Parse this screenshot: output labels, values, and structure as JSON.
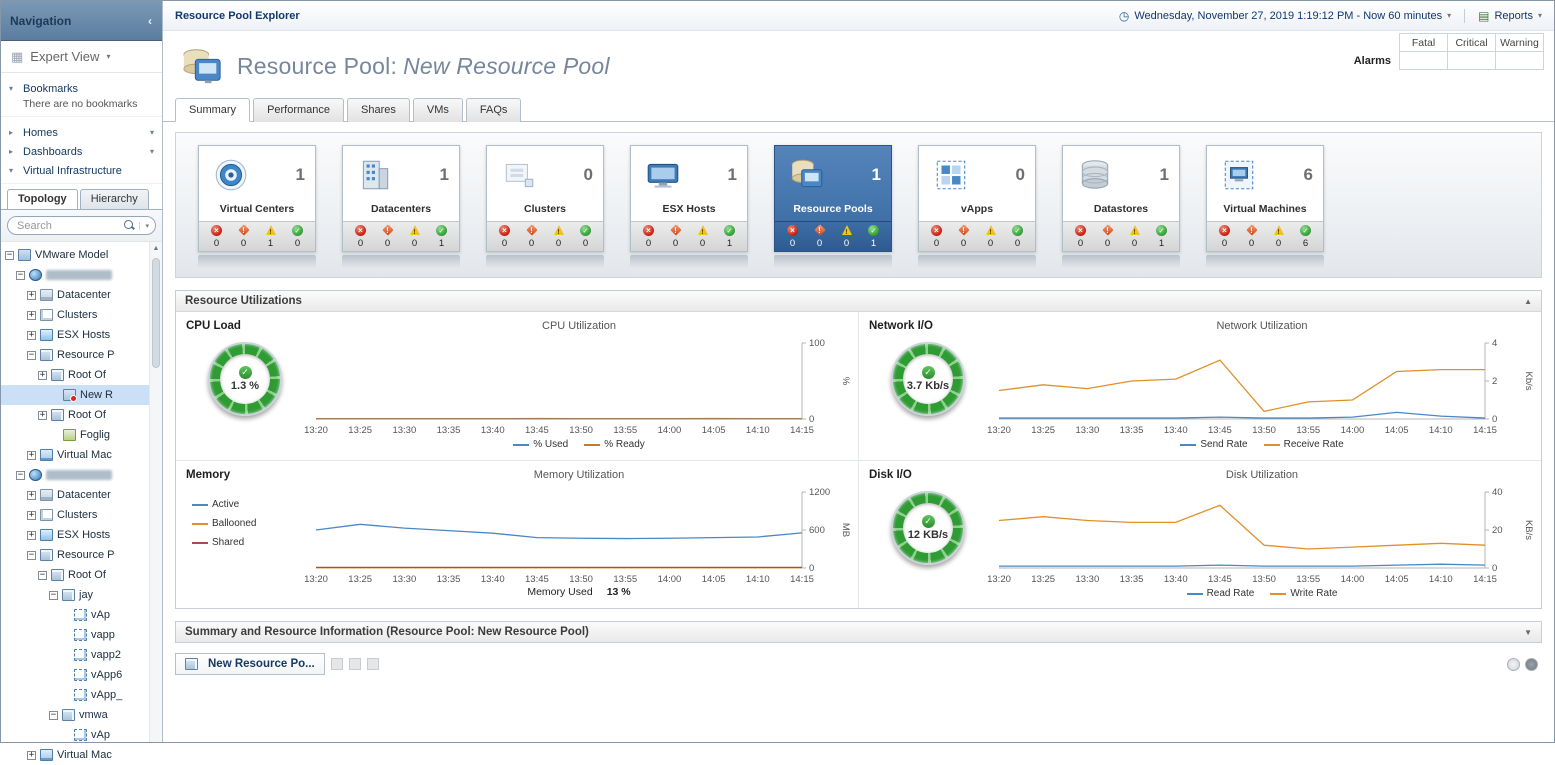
{
  "icons": {
    "collapse_left": "‹",
    "dropdown": "▾",
    "tri_down": "▾",
    "tri_right": "▸",
    "tri_up": "▲",
    "collapse_up": "▲",
    "collapse_down": "▼",
    "clock": "◷",
    "reports": "▤",
    "grid": "▦",
    "check": "✓",
    "search": "css-magnifier"
  },
  "nav": {
    "title": "Navigation",
    "expert_view": "Expert View",
    "bookmarks_label": "Bookmarks",
    "bookmarks_empty": "There are no bookmarks",
    "homes_label": "Homes",
    "dashboards_label": "Dashboards",
    "vi_label": "Virtual Infrastructure",
    "tabs": {
      "topology": "Topology",
      "hierarchy": "Hierarchy"
    },
    "search_placeholder": "Search",
    "tree": [
      {
        "depth": 0,
        "exp": "-",
        "icon": "model",
        "label": "VMware Model"
      },
      {
        "depth": 1,
        "exp": "-",
        "icon": "vcenter",
        "label": "",
        "redacted": true
      },
      {
        "depth": 2,
        "exp": "+",
        "icon": "datacenter",
        "label": "Datacenter"
      },
      {
        "depth": 2,
        "exp": "+",
        "icon": "cluster",
        "label": "Clusters"
      },
      {
        "depth": 2,
        "exp": "+",
        "icon": "host",
        "label": "ESX Hosts"
      },
      {
        "depth": 2,
        "exp": "-",
        "icon": "pool",
        "label": "Resource P"
      },
      {
        "depth": 3,
        "exp": "+",
        "icon": "pool",
        "label": "Root Of"
      },
      {
        "depth": 4,
        "exp": null,
        "icon": "pool-alarm",
        "label": "New R",
        "selected": true
      },
      {
        "depth": 3,
        "exp": "+",
        "icon": "pool",
        "label": "Root Of"
      },
      {
        "depth": 4,
        "exp": null,
        "icon": "foglight",
        "label": "Foglig"
      },
      {
        "depth": 2,
        "exp": "+",
        "icon": "vm",
        "label": "Virtual Mac"
      },
      {
        "depth": 1,
        "exp": "-",
        "icon": "vcenter",
        "label": "",
        "redacted": true
      },
      {
        "depth": 2,
        "exp": "+",
        "icon": "datacenter",
        "label": "Datacenter"
      },
      {
        "depth": 2,
        "exp": "+",
        "icon": "cluster",
        "label": "Clusters"
      },
      {
        "depth": 2,
        "exp": "+",
        "icon": "host",
        "label": "ESX Hosts"
      },
      {
        "depth": 2,
        "exp": "-",
        "icon": "pool",
        "label": "Resource P"
      },
      {
        "depth": 3,
        "exp": "-",
        "icon": "pool",
        "label": "Root Of"
      },
      {
        "depth": 4,
        "exp": "-",
        "icon": "pool",
        "label": "jay"
      },
      {
        "depth": 5,
        "exp": null,
        "icon": "vapp",
        "label": "vAp"
      },
      {
        "depth": 5,
        "exp": null,
        "icon": "vapp",
        "label": "vapp"
      },
      {
        "depth": 5,
        "exp": null,
        "icon": "vapp",
        "label": "vapp2"
      },
      {
        "depth": 5,
        "exp": null,
        "icon": "vapp",
        "label": "vApp6"
      },
      {
        "depth": 5,
        "exp": null,
        "icon": "vapp",
        "label": "vApp_"
      },
      {
        "depth": 4,
        "exp": "-",
        "icon": "pool",
        "label": "vmwa"
      },
      {
        "depth": 5,
        "exp": null,
        "icon": "vapp",
        "label": "vAp"
      },
      {
        "depth": 2,
        "exp": "+",
        "icon": "vm",
        "label": "Virtual Mac"
      }
    ]
  },
  "topbar": {
    "breadcrumb": "Resource Pool Explorer",
    "time_text": "Wednesday, November 27, 2019 1:19:12 PM - Now 60 minutes",
    "reports_label": "Reports"
  },
  "title": {
    "prefix": "Resource Pool:",
    "name": "New Resource Pool"
  },
  "alarms": {
    "label": "Alarms",
    "columns": [
      "Fatal",
      "Critical",
      "Warning"
    ],
    "values": [
      "",
      "",
      ""
    ]
  },
  "tabs": {
    "items": [
      "Summary",
      "Performance",
      "Shares",
      "VMs",
      "FAQs"
    ],
    "active": "Summary"
  },
  "badge_severities": [
    "fatal",
    "critical",
    "warning",
    "normal"
  ],
  "tiles": [
    {
      "label": "Virtual Centers",
      "count": "1",
      "icon": "virtual-centers",
      "badges": [
        "0",
        "0",
        "1",
        "0"
      ]
    },
    {
      "label": "Datacenters",
      "count": "1",
      "icon": "datacenters",
      "badges": [
        "0",
        "0",
        "0",
        "1"
      ]
    },
    {
      "label": "Clusters",
      "count": "0",
      "icon": "clusters",
      "badges": [
        "0",
        "0",
        "0",
        "0"
      ]
    },
    {
      "label": "ESX Hosts",
      "count": "1",
      "icon": "esx-hosts",
      "badges": [
        "0",
        "0",
        "0",
        "1"
      ]
    },
    {
      "label": "Resource Pools",
      "count": "1",
      "icon": "resource-pools",
      "badges": [
        "0",
        "0",
        "0",
        "1"
      ],
      "selected": true
    },
    {
      "label": "vApps",
      "count": "0",
      "icon": "vapps",
      "badges": [
        "0",
        "0",
        "0",
        "0"
      ]
    },
    {
      "label": "Datastores",
      "count": "1",
      "icon": "datastores",
      "badges": [
        "0",
        "0",
        "0",
        "1"
      ]
    },
    {
      "label": "Virtual Machines",
      "count": "6",
      "icon": "virtual-machines",
      "badges": [
        "0",
        "0",
        "0",
        "6"
      ]
    }
  ],
  "sections": {
    "utilizations": "Resource Utilizations",
    "summary": "Summary and Resource Information (Resource Pool: New Resource Pool)"
  },
  "quadrants": {
    "cpu": {
      "label": "CPU Load",
      "gauge_value": "1.3 %",
      "chart_title": "CPU Utilization"
    },
    "network": {
      "label": "Network I/O",
      "gauge_value": "3.7 Kb/s",
      "chart_title": "Network Utilization"
    },
    "memory": {
      "label": "Memory",
      "chart_title": "Memory Utilization",
      "footer_label": "Memory Used",
      "footer_value": "13 %"
    },
    "disk": {
      "label": "Disk I/O",
      "gauge_value": "12 KB/s",
      "chart_title": "Disk Utilization"
    }
  },
  "chart_data": [
    {
      "id": "cpu",
      "type": "line",
      "title": "CPU Utilization",
      "ylabel": "%",
      "ylim": [
        0,
        100
      ],
      "yticks": [
        0,
        100
      ],
      "x": [
        "13:20",
        "13:25",
        "13:30",
        "13:35",
        "13:40",
        "13:45",
        "13:50",
        "13:55",
        "14:00",
        "14:05",
        "14:10",
        "14:15"
      ],
      "series": [
        {
          "name": "% Used",
          "color": "#4a87c6",
          "values": [
            0.5,
            0.5,
            0.5,
            0.5,
            0.5,
            0.6,
            0.5,
            0.5,
            0.5,
            0.6,
            0.5,
            0.5
          ]
        },
        {
          "name": "% Ready",
          "color": "#c07a3a",
          "values": [
            0.2,
            0.2,
            0.2,
            0.2,
            0.2,
            0.2,
            0.2,
            0.2,
            0.2,
            0.2,
            0.2,
            0.2
          ]
        }
      ],
      "legend_pos": "bottom",
      "grid": false
    },
    {
      "id": "network",
      "type": "line",
      "title": "Network Utilization",
      "ylabel": "Kb/s",
      "ylim": [
        0,
        4
      ],
      "yticks": [
        0,
        2,
        4
      ],
      "x": [
        "13:20",
        "13:25",
        "13:30",
        "13:35",
        "13:40",
        "13:45",
        "13:50",
        "13:55",
        "14:00",
        "14:05",
        "14:10",
        "14:15"
      ],
      "series": [
        {
          "name": "Send Rate",
          "color": "#4a87c6",
          "values": [
            0.05,
            0.05,
            0.05,
            0.05,
            0.05,
            0.1,
            0.05,
            0.05,
            0.1,
            0.35,
            0.15,
            0.05
          ]
        },
        {
          "name": "Receive Rate",
          "color": "#e09028",
          "values": [
            1.5,
            1.8,
            1.6,
            2.0,
            2.1,
            3.1,
            0.4,
            0.9,
            1.0,
            2.5,
            2.6,
            2.6
          ]
        }
      ],
      "legend_pos": "bottom",
      "grid": false
    },
    {
      "id": "memory",
      "type": "line",
      "title": "Memory Utilization",
      "ylabel": "MB",
      "ylim": [
        0,
        1200
      ],
      "yticks": [
        0,
        600,
        1200
      ],
      "x": [
        "13:20",
        "13:25",
        "13:30",
        "13:35",
        "13:40",
        "13:45",
        "13:50",
        "13:55",
        "14:00",
        "14:05",
        "14:10",
        "14:15"
      ],
      "series": [
        {
          "name": "Active",
          "color": "#4a87c6",
          "values": [
            600,
            690,
            630,
            590,
            550,
            480,
            470,
            465,
            470,
            480,
            490,
            555
          ]
        },
        {
          "name": "Ballooned",
          "color": "#e09028",
          "values": [
            5,
            5,
            5,
            5,
            5,
            5,
            5,
            5,
            5,
            5,
            5,
            5
          ]
        },
        {
          "name": "Shared",
          "color": "#a05050",
          "values": [
            10,
            10,
            10,
            10,
            10,
            10,
            10,
            10,
            10,
            10,
            10,
            10
          ]
        }
      ],
      "legend_pos": "left",
      "grid": false
    },
    {
      "id": "disk",
      "type": "line",
      "title": "Disk Utilization",
      "ylabel": "KB/s",
      "ylim": [
        0,
        40
      ],
      "yticks": [
        0,
        20,
        40
      ],
      "x": [
        "13:20",
        "13:25",
        "13:30",
        "13:35",
        "13:40",
        "13:45",
        "13:50",
        "13:55",
        "14:00",
        "14:05",
        "14:10",
        "14:15"
      ],
      "series": [
        {
          "name": "Read Rate",
          "color": "#4a87c6",
          "values": [
            1,
            1,
            1,
            1,
            1,
            1.5,
            1,
            1,
            1,
            1.5,
            2,
            1.5
          ]
        },
        {
          "name": "Write Rate",
          "color": "#e09028",
          "values": [
            25,
            27,
            25,
            24,
            24,
            33,
            12,
            10,
            11,
            12,
            13,
            12
          ]
        }
      ],
      "legend_pos": "bottom",
      "grid": false
    }
  ],
  "footer": {
    "tab_label": "New Resource Po..."
  }
}
